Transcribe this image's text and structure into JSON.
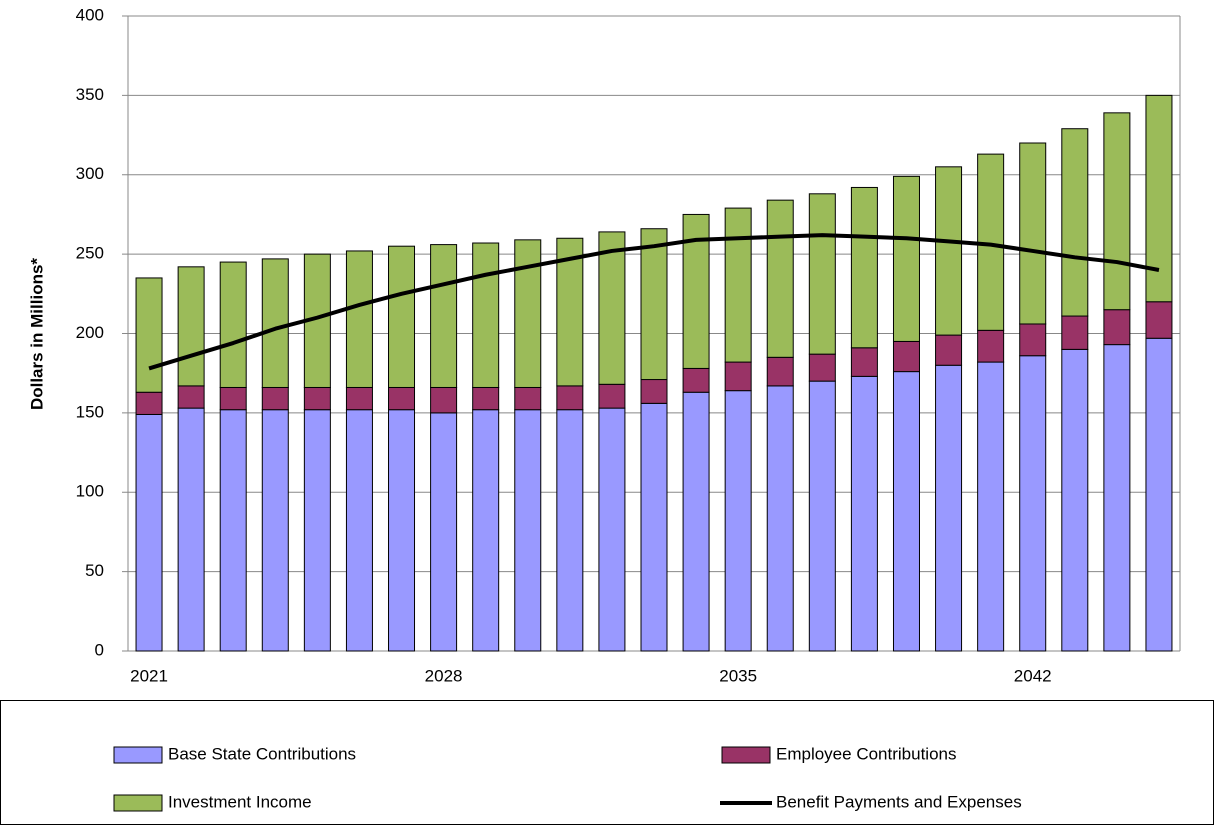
{
  "chart_data": {
    "type": "bar",
    "stacked": true,
    "y_label": "Dollars in Millions*",
    "categories": [
      "2021",
      null,
      null,
      null,
      null,
      null,
      null,
      "2028",
      null,
      null,
      null,
      null,
      null,
      null,
      "2035",
      null,
      null,
      null,
      null,
      null,
      null,
      "2042",
      null,
      null,
      null
    ],
    "series": [
      {
        "name": "Base State Contributions",
        "color": "#9999ff",
        "values": [
          149,
          153,
          152,
          152,
          152,
          152,
          152,
          150,
          152,
          152,
          152,
          153,
          156,
          163,
          164,
          167,
          170,
          173,
          176,
          180,
          182,
          186,
          190,
          193,
          197
        ]
      },
      {
        "name": "Employee Contributions",
        "color": "#993366",
        "values": [
          14,
          14,
          14,
          14,
          14,
          14,
          14,
          16,
          14,
          14,
          15,
          15,
          15,
          15,
          18,
          18,
          17,
          18,
          19,
          19,
          20,
          20,
          21,
          22,
          23
        ]
      },
      {
        "name": "Investment Income",
        "color": "#9bbb59",
        "values": [
          72,
          75,
          79,
          81,
          84,
          86,
          89,
          90,
          91,
          93,
          93,
          96,
          95,
          97,
          97,
          99,
          101,
          101,
          104,
          106,
          111,
          114,
          118,
          124,
          130
        ]
      },
      {
        "name": "Benefit Payments and Expenses",
        "type": "line",
        "color": "#000000",
        "values": [
          178,
          186,
          194,
          203,
          210,
          218,
          225,
          231,
          237,
          242,
          247,
          252,
          255,
          259,
          260,
          261,
          262,
          261,
          260,
          258,
          256,
          252,
          248,
          245,
          240
        ]
      }
    ],
    "ylim": [
      0,
      400
    ],
    "yticks": [
      0,
      50,
      100,
      150,
      200,
      250,
      300,
      350,
      400
    ],
    "grid": true,
    "legend": "bottom"
  }
}
